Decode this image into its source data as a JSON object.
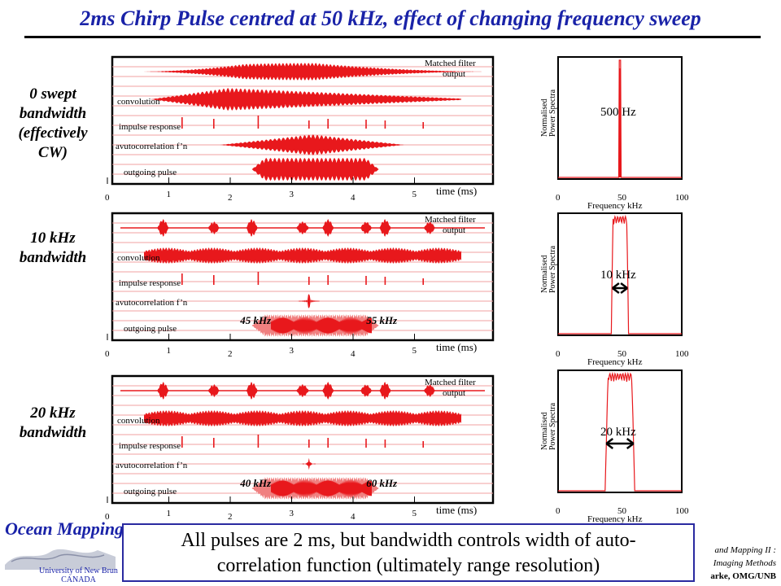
{
  "title": "2ms Chirp Pulse centred at 50 kHz, effect of changing frequency sweep",
  "row_labels": [
    {
      "lines": [
        "0 swept",
        "bandwidth",
        "(effectively",
        "CW)"
      ]
    },
    {
      "lines": [
        "10 kHz",
        "bandwidth"
      ]
    },
    {
      "lines": [
        "20 kHz",
        "bandwidth"
      ]
    }
  ],
  "caption": {
    "line1": "All pulses are 2 ms, but bandwidth controls width of auto-",
    "line2": "correlation function (ultimately range resolution)"
  },
  "logo": {
    "name": "Ocean Mapping",
    "university": "University of New Brun",
    "country": "CANADA"
  },
  "footer": {
    "line1": "and Mapping II :",
    "line2": "Imaging Methods",
    "line3": "arke, OMG/UNB"
  },
  "colors": {
    "title": "#1a23a8",
    "trace": "#e8181c",
    "trace_light": "#f08080",
    "gridline": "#f0a0a0"
  },
  "chart_data": [
    {
      "type": "line",
      "panel": "time-domain",
      "xlabel": "time (ms)",
      "xticks": [
        "0",
        "1",
        "2",
        "3",
        "4",
        "5"
      ],
      "xlim": [
        0,
        6
      ],
      "trace_labels": [
        "Matched filter",
        "output",
        "convolution",
        "impulse response",
        "avutocorrelation f’n",
        "outgoing pulse"
      ],
      "sweep_labels": [
        "",
        ""
      ],
      "series": [
        {
          "name": "Matched filter output",
          "start_ms": 0.4,
          "end_ms": 6.0,
          "peak_ms": 1.7
        },
        {
          "name": "convolution",
          "start_ms": 0.6,
          "end_ms": 5.5,
          "peak_ms": 1.3
        },
        {
          "name": "impulse response",
          "impulses_ms": [
            1.1,
            1.6,
            2.3,
            3.1,
            3.4,
            4.0,
            4.3,
            4.9
          ]
        },
        {
          "name": "autocorrelation",
          "start_ms": 1.7,
          "end_ms": 4.6,
          "peak_ms": 3.1
        },
        {
          "name": "outgoing pulse",
          "start_ms": 2.2,
          "end_ms": 4.2
        }
      ]
    },
    {
      "type": "line",
      "panel": "spectrum",
      "xlabel": "Frequency kHz",
      "ylabel": [
        "Normalised",
        "Power Spectra"
      ],
      "xticks": [
        "0",
        "50",
        "100"
      ],
      "xlim": [
        0,
        100
      ],
      "annotation": "500 Hz",
      "bandwidth_khz": 0.5
    },
    {
      "type": "line",
      "panel": "time-domain",
      "xlabel": "time (ms)",
      "xticks": [
        "0",
        "1",
        "2",
        "3",
        "4",
        "5"
      ],
      "xlim": [
        0,
        6
      ],
      "trace_labels": [
        "Matched filter",
        "output",
        "convolution",
        "impulse response",
        "avutocorrelation f’n",
        "outgoing pulse"
      ],
      "sweep_labels": [
        "45 kHz",
        "55 kHz"
      ],
      "series": [
        {
          "name": "Matched filter output",
          "peaks_ms": [
            0.8,
            1.6,
            2.2,
            3.0,
            3.4,
            4.0,
            4.3,
            5.0
          ]
        },
        {
          "name": "convolution",
          "start_ms": 0.5,
          "end_ms": 5.5
        },
        {
          "name": "impulse response",
          "impulses_ms": [
            1.1,
            1.6,
            2.3,
            3.1,
            3.4,
            4.0,
            4.3,
            4.9
          ]
        },
        {
          "name": "autocorrelation",
          "peak_ms": 3.1
        },
        {
          "name": "outgoing pulse",
          "start_ms": 2.2,
          "end_ms": 4.2
        }
      ]
    },
    {
      "type": "line",
      "panel": "spectrum",
      "xlabel": "Frequency kHz",
      "ylabel": [
        "Normalised",
        "Power Spectra"
      ],
      "xticks": [
        "0",
        "50",
        "100"
      ],
      "xlim": [
        0,
        100
      ],
      "annotation": "10 kHz",
      "bandwidth_khz": 10
    },
    {
      "type": "line",
      "panel": "time-domain",
      "xlabel": "time (ms)",
      "xticks": [
        "0",
        "1",
        "2",
        "3",
        "4",
        "5"
      ],
      "xlim": [
        0,
        6
      ],
      "trace_labels": [
        "Matched filter",
        "output",
        "convolution",
        "impulse response",
        "avutocorrelation f’n",
        "outgoing pulse"
      ],
      "sweep_labels": [
        "40 kHz",
        "60 kHz"
      ],
      "series": [
        {
          "name": "Matched filter output",
          "peaks_ms": [
            0.8,
            1.6,
            2.2,
            3.0,
            3.4,
            4.0,
            4.3,
            5.0
          ]
        },
        {
          "name": "convolution",
          "start_ms": 0.5,
          "end_ms": 5.5
        },
        {
          "name": "impulse response",
          "impulses_ms": [
            1.1,
            1.6,
            2.3,
            3.1,
            3.4,
            4.0,
            4.3,
            4.9
          ]
        },
        {
          "name": "autocorrelation",
          "peak_ms": 3.1
        },
        {
          "name": "outgoing pulse",
          "start_ms": 2.2,
          "end_ms": 4.2
        }
      ]
    },
    {
      "type": "line",
      "panel": "spectrum",
      "xlabel": "Frequency kHz",
      "ylabel": [
        "Normalised",
        "Power Spectra"
      ],
      "xticks": [
        "0",
        "50",
        "100"
      ],
      "xlim": [
        0,
        100
      ],
      "annotation": "20 kHz",
      "bandwidth_khz": 20
    }
  ]
}
